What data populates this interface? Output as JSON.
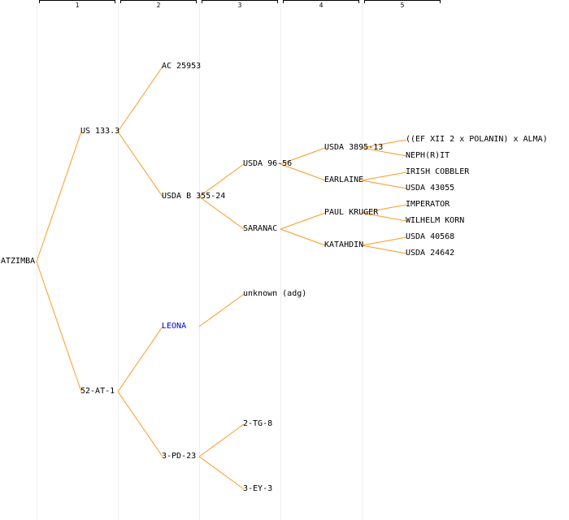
{
  "generations": [
    "1",
    "2",
    "3",
    "4",
    "5"
  ],
  "colors": {
    "edge": "#ff9922",
    "link": "#0000cc",
    "column_line": "#eeeeee"
  },
  "nodes": {
    "atzimba": "ATZIMBA",
    "us133": "US 133.3",
    "at52": "52-AT-1",
    "ac25953": "AC 25953",
    "usdab": "USDA B 355-24",
    "leona": "LEONA",
    "pd23": "3-PD-23",
    "usda9656": "USDA 96-56",
    "saranac": "SARANAC",
    "unknown": "unknown (adg)",
    "tg8": "2-TG-8",
    "ey3": "3-EY-3",
    "usda3895": "USDA 3895-13",
    "earlaine": "EARLAINE",
    "kruger": "PAUL KRUGER",
    "katahdin": "KATAHDIN",
    "efxii": "((EF XII 2 x POLANIN) x ALMA)",
    "nephrit": "NEPH(R)IT",
    "cobbler": "IRISH COBBLER",
    "usda43055": "USDA 43055",
    "imperator": "IMPERATOR",
    "wilhelm": "WILHELM KORN",
    "usda40568": "USDA 40568",
    "usda24642": "USDA 24642"
  }
}
